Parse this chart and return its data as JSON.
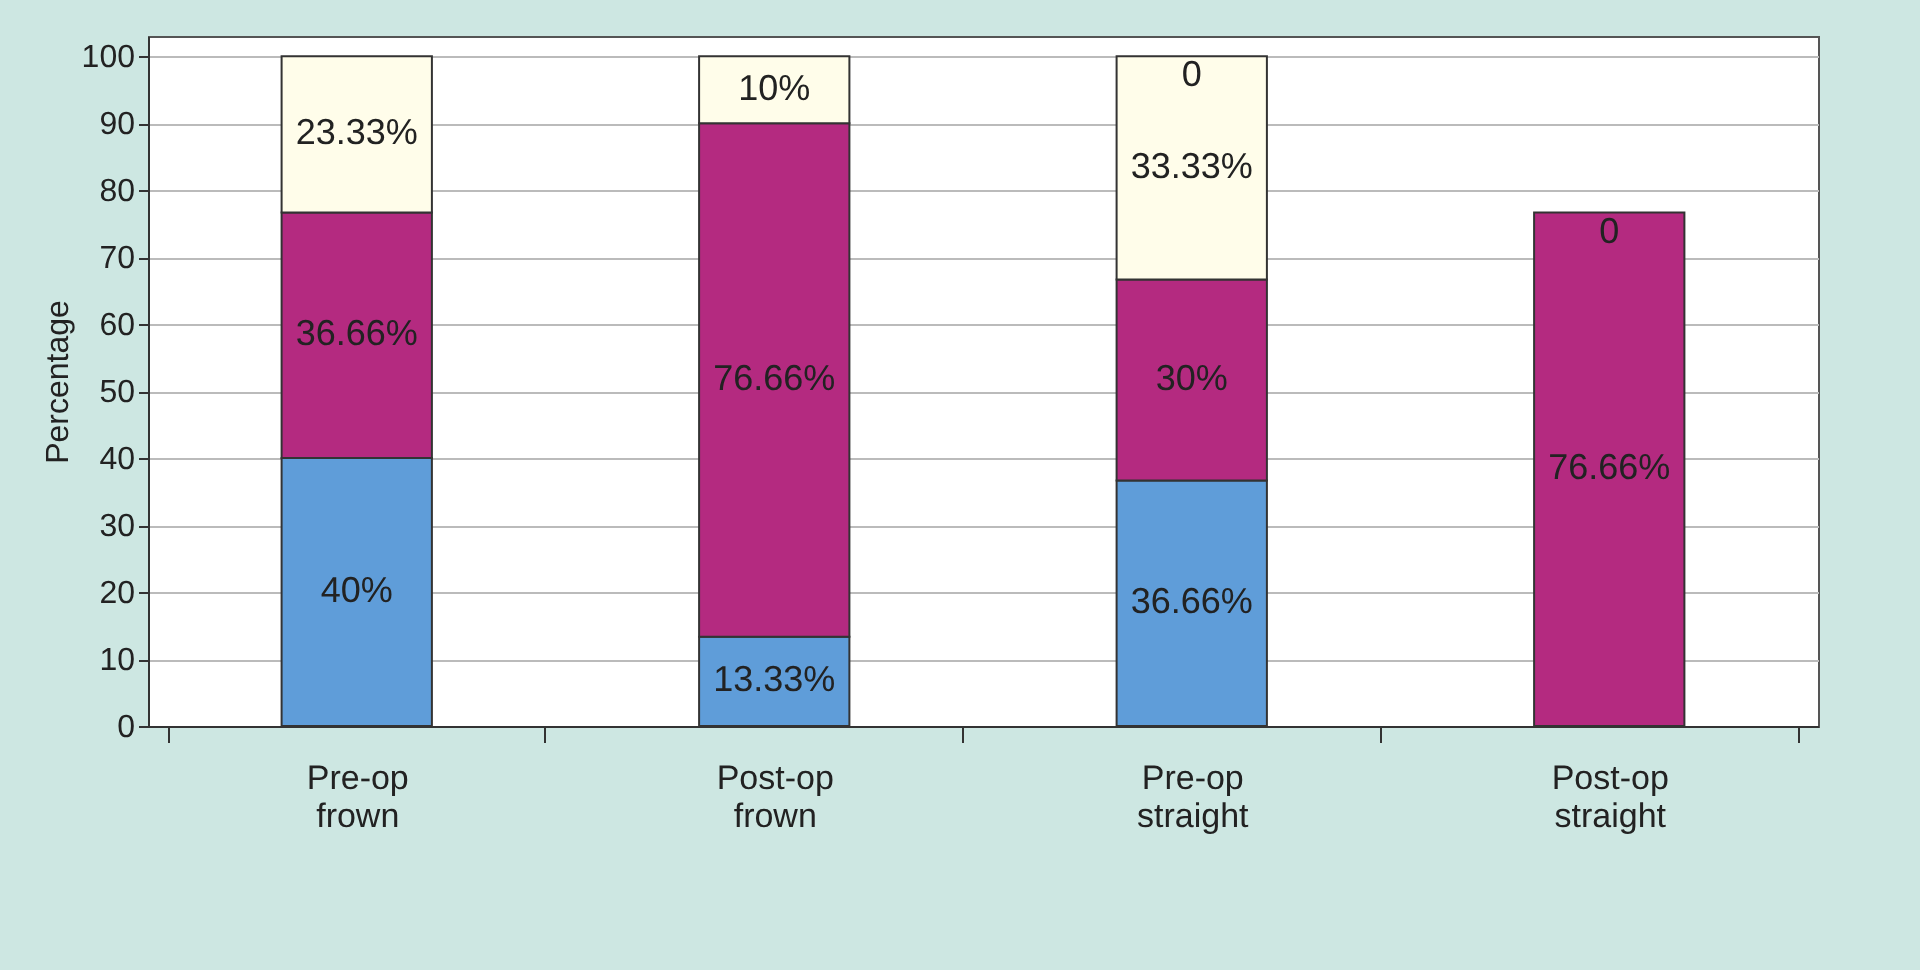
{
  "chart_data": {
    "type": "bar",
    "stacked": true,
    "ylabel": "Percentage",
    "categories": [
      "Pre-op frown",
      "Post-op frown",
      "Pre-op straight",
      "Post-op straight"
    ],
    "series": [
      {
        "color": "#5f9dd9",
        "values": [
          40,
          13.33,
          36.66,
          0
        ],
        "value_labels": [
          "40%",
          "13.33%",
          "36.66%",
          null
        ]
      },
      {
        "color": "#b42a80",
        "values": [
          36.66,
          76.66,
          30,
          76.66
        ],
        "value_labels": [
          "36.66%",
          "76.66%",
          "30%",
          "76.66%"
        ]
      },
      {
        "color": "#fffdea",
        "values": [
          23.33,
          10,
          33.33,
          0
        ],
        "value_labels": [
          "23.33%",
          "10%",
          "33.33%",
          "0"
        ]
      },
      {
        "color": "#dce4b4",
        "values": [
          null,
          null,
          0,
          null
        ],
        "value_labels": [
          null,
          null,
          "0",
          null
        ]
      }
    ],
    "ylim": [
      0,
      103
    ],
    "yticks": [
      0,
      10,
      20,
      30,
      40,
      50,
      60,
      70,
      80,
      90,
      100
    ],
    "grid": "y",
    "legend": false
  }
}
